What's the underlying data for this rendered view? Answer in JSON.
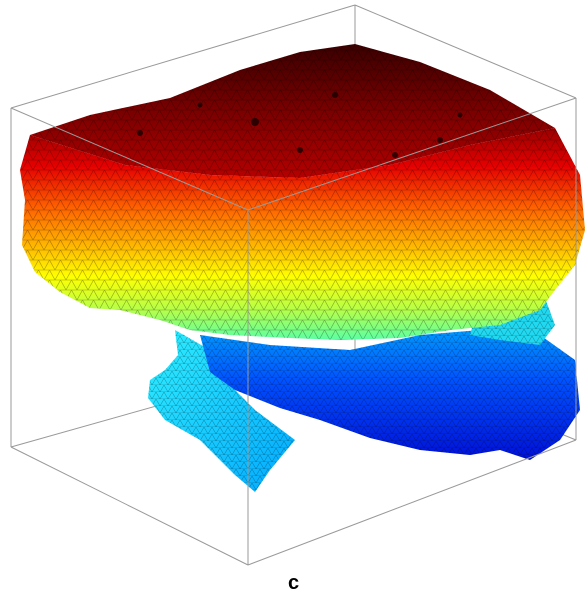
{
  "figure": {
    "panel_label": "c",
    "colormap": [
      "#00008f",
      "#0033ff",
      "#00c8ff",
      "#7fff7f",
      "#ffff00",
      "#ff8000",
      "#ff0000",
      "#800000"
    ],
    "bounding_box_color": "#888888",
    "mesh_line_color": "#000000"
  }
}
